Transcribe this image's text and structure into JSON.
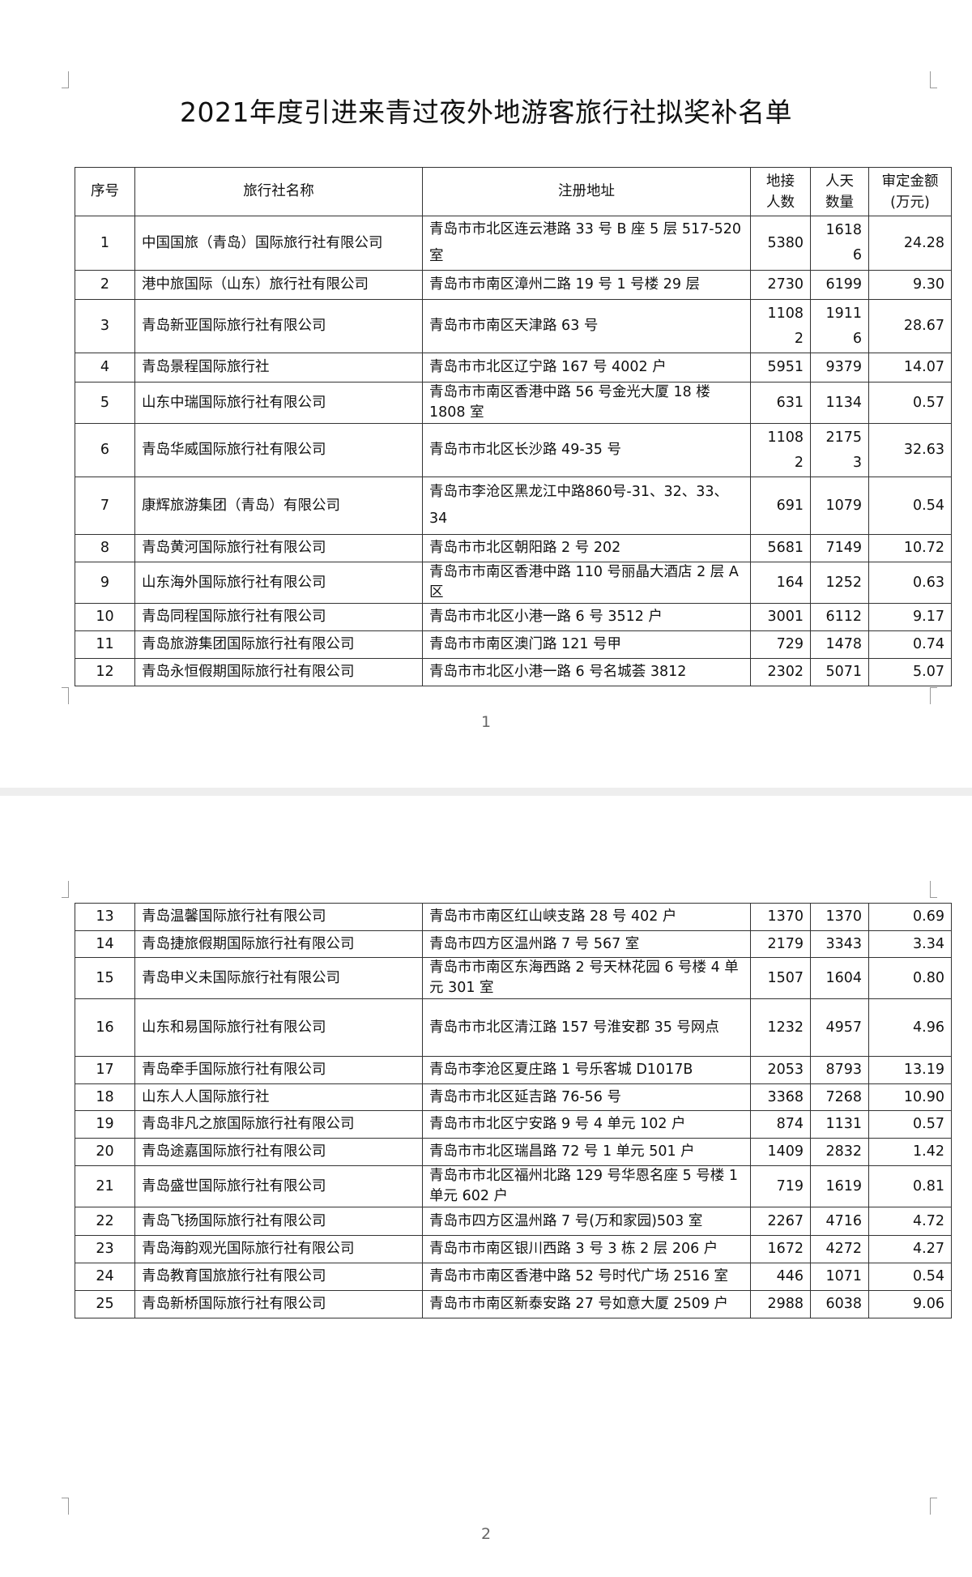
{
  "title": "2021年度引进来青过夜外地游客旅行社拟奖补名单",
  "columns": [
    "序号",
    "旅行社名称",
    "注册地址",
    "地接人数",
    "人天数量",
    "审定金额(万元)"
  ],
  "rows": [
    {
      "no": "1",
      "name": "中国国旅（青岛）国际旅行社有限公司",
      "address": "青岛市市北区连云港路 33 号 B 座 5 层 517-520 室",
      "visitors": "5380",
      "person_days": "16186",
      "amount": "24.28"
    },
    {
      "no": "2",
      "name": "港中旅国际（山东）旅行社有限公司",
      "address": "青岛市市南区漳州二路 19 号 1 号楼 29 层",
      "visitors": "2730",
      "person_days": "6199",
      "amount": "9.30"
    },
    {
      "no": "3",
      "name": "青岛新亚国际旅行社有限公司",
      "address": "青岛市市南区天津路 63 号",
      "visitors": "11082",
      "person_days": "19116",
      "amount": "28.67"
    },
    {
      "no": "4",
      "name": "青岛景程国际旅行社",
      "address": "青岛市市北区辽宁路 167 号 4002 户",
      "visitors": "5951",
      "person_days": "9379",
      "amount": "14.07"
    },
    {
      "no": "5",
      "name": "山东中瑞国际旅行社有限公司",
      "address": "青岛市市南区香港中路 56 号金光大厦 18 楼 1808 室",
      "visitors": "631",
      "person_days": "1134",
      "amount": "0.57"
    },
    {
      "no": "6",
      "name": "青岛华威国际旅行社有限公司",
      "address": "青岛市市北区长沙路 49-35 号",
      "visitors": "11082",
      "person_days": "21753",
      "amount": "32.63"
    },
    {
      "no": "7",
      "name": "康辉旅游集团（青岛）有限公司",
      "address": "青岛市李沧区黑龙江中路860号-31、32、33、34",
      "visitors": "691",
      "person_days": "1079",
      "amount": "0.54"
    },
    {
      "no": "8",
      "name": "青岛黄河国际旅行社有限公司",
      "address": "青岛市市北区朝阳路 2 号 202",
      "visitors": "5681",
      "person_days": "7149",
      "amount": "10.72"
    },
    {
      "no": "9",
      "name": "山东海外国际旅行社有限公司",
      "address": "青岛市市南区香港中路 110 号丽晶大酒店 2 层 A 区",
      "visitors": "164",
      "person_days": "1252",
      "amount": "0.63"
    },
    {
      "no": "10",
      "name": "青岛同程国际旅行社有限公司",
      "address": "青岛市市北区小港一路 6 号 3512 户",
      "visitors": "3001",
      "person_days": "6112",
      "amount": "9.17"
    },
    {
      "no": "11",
      "name": "青岛旅游集团国际旅行社有限公司",
      "address": "青岛市市南区澳门路 121 号甲",
      "visitors": "729",
      "person_days": "1478",
      "amount": "0.74"
    },
    {
      "no": "12",
      "name": "青岛永恒假期国际旅行社有限公司",
      "address": "青岛市市北区小港一路 6 号名城荟 3812",
      "visitors": "2302",
      "person_days": "5071",
      "amount": "5.07"
    },
    {
      "no": "13",
      "name": "青岛温馨国际旅行社有限公司",
      "address": "青岛市市南区红山峡支路 28 号 402 户",
      "visitors": "1370",
      "person_days": "1370",
      "amount": "0.69"
    },
    {
      "no": "14",
      "name": "青岛捷旅假期国际旅行社有限公司",
      "address": "青岛市四方区温州路 7 号 567 室",
      "visitors": "2179",
      "person_days": "3343",
      "amount": "3.34"
    },
    {
      "no": "15",
      "name": "青岛申义未国际旅行社有限公司",
      "address": "青岛市市南区东海西路 2 号天林花园 6 号楼 4 单元 301 室",
      "visitors": "1507",
      "person_days": "1604",
      "amount": "0.80"
    },
    {
      "no": "16",
      "name": "山东和易国际旅行社有限公司",
      "address": "青岛市市北区清江路 157 号淮安郡 35 号网点",
      "visitors": "1232",
      "person_days": "4957",
      "amount": "4.96"
    },
    {
      "no": "17",
      "name": "青岛牵手国际旅行社有限公司",
      "address": "青岛市李沧区夏庄路 1 号乐客城 D1017B",
      "visitors": "2053",
      "person_days": "8793",
      "amount": "13.19"
    },
    {
      "no": "18",
      "name": "山东人人国际旅行社",
      "address": "青岛市市北区延吉路 76-56 号",
      "visitors": "3368",
      "person_days": "7268",
      "amount": "10.90"
    },
    {
      "no": "19",
      "name": "青岛非凡之旅国际旅行社有限公司",
      "address": "青岛市市北区宁安路 9 号 4 单元 102 户",
      "visitors": "874",
      "person_days": "1131",
      "amount": "0.57"
    },
    {
      "no": "20",
      "name": "青岛途嘉国际旅行社有限公司",
      "address": "青岛市市北区瑞昌路 72 号 1 单元 501 户",
      "visitors": "1409",
      "person_days": "2832",
      "amount": "1.42"
    },
    {
      "no": "21",
      "name": "青岛盛世国际旅行社有限公司",
      "address": "青岛市市北区福州北路 129 号华恩名座 5 号楼 1 单元 602 户",
      "visitors": "719",
      "person_days": "1619",
      "amount": "0.81"
    },
    {
      "no": "22",
      "name": "青岛飞扬国际旅行社有限公司",
      "address": "青岛市四方区温州路 7 号(万和家园)503 室",
      "visitors": "2267",
      "person_days": "4716",
      "amount": "4.72"
    },
    {
      "no": "23",
      "name": "青岛海韵观光国际旅行社有限公司",
      "address": "青岛市市南区银川西路 3 号 3 栋 2 层 206 户",
      "visitors": "1672",
      "person_days": "4272",
      "amount": "4.27"
    },
    {
      "no": "24",
      "name": "青岛教育国旅旅行社有限公司",
      "address": "青岛市市南区香港中路 52 号时代广场 2516 室",
      "visitors": "446",
      "person_days": "1071",
      "amount": "0.54"
    },
    {
      "no": "25",
      "name": "青岛新桥国际旅行社有限公司",
      "address": "青岛市市南区新泰安路 27 号如意大厦 2509 户",
      "visitors": "2988",
      "person_days": "6038",
      "amount": "9.06"
    }
  ],
  "page_numbers": [
    "1",
    "2"
  ]
}
